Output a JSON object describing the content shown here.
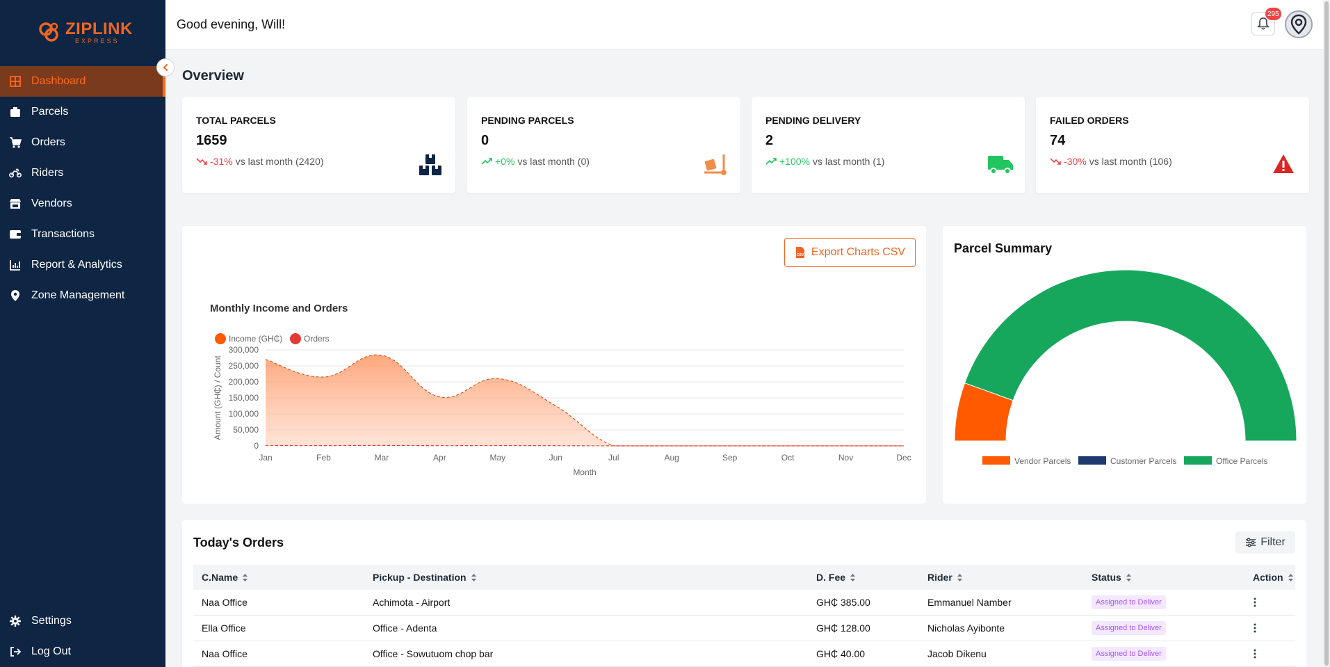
{
  "app": {
    "logo_main": "ZIPLINK",
    "logo_sub": "EXPRESS"
  },
  "sidebar": {
    "items": [
      {
        "label": "Dashboard",
        "icon": "grid-icon",
        "active": true
      },
      {
        "label": "Parcels",
        "icon": "package-icon"
      },
      {
        "label": "Orders",
        "icon": "cart-icon"
      },
      {
        "label": "Riders",
        "icon": "motorbike-icon"
      },
      {
        "label": "Vendors",
        "icon": "store-icon"
      },
      {
        "label": "Transactions",
        "icon": "wallet-icon"
      },
      {
        "label": "Report & Analytics",
        "icon": "chart-icon"
      },
      {
        "label": "Zone Management",
        "icon": "map-pin-icon"
      }
    ],
    "bottom": [
      {
        "label": "Settings",
        "icon": "gear-icon"
      },
      {
        "label": "Log Out",
        "icon": "logout-icon"
      }
    ]
  },
  "header": {
    "greeting": "Good evening, Will!",
    "notification_count": "295"
  },
  "overview": {
    "title": "Overview",
    "cards": [
      {
        "label": "TOTAL PARCELS",
        "value": "1659",
        "change": "-31%",
        "direction": "down",
        "compare": "vs last month (2420)",
        "icon": "boxes-icon",
        "color": "#0e2543"
      },
      {
        "label": "PENDING PARCELS",
        "value": "0",
        "change": "+0%",
        "direction": "up",
        "compare": "vs last month (0)",
        "icon": "dolly-icon",
        "color": "#f28c4a"
      },
      {
        "label": "PENDING DELIVERY",
        "value": "2",
        "change": "+100%",
        "direction": "up",
        "compare": "vs last month (1)",
        "icon": "truck-icon",
        "color": "#22c55e"
      },
      {
        "label": "FAILED ORDERS",
        "value": "74",
        "change": "-30%",
        "direction": "down",
        "compare": "vs last month (106)",
        "icon": "warning-icon",
        "color": "#dc2626"
      }
    ]
  },
  "income_chart": {
    "export_label": "Export Charts CSV",
    "chart_data": {
      "type": "area",
      "title": "Monthly Income and Orders",
      "xlabel": "Month",
      "ylabel": "Amount (GH₵) / Count",
      "categories": [
        "Jan",
        "Feb",
        "Mar",
        "Apr",
        "May",
        "Jun",
        "Jul",
        "Aug",
        "Sep",
        "Oct",
        "Nov",
        "Dec"
      ],
      "ylim": [
        0,
        300000
      ],
      "yticks": [
        "0",
        "50,000",
        "100,000",
        "150,000",
        "200,000",
        "250,000",
        "300,000"
      ],
      "legend_position": "top-left",
      "series": [
        {
          "name": "Income (GH₵)",
          "color": "#ff5a00",
          "values": [
            270000,
            215000,
            283000,
            153000,
            210000,
            125000,
            0,
            0,
            0,
            0,
            0,
            0
          ]
        },
        {
          "name": "Orders",
          "color": "#e53935",
          "values": [
            1200,
            900,
            1300,
            700,
            1000,
            500,
            0,
            0,
            0,
            0,
            0,
            0
          ]
        }
      ]
    }
  },
  "parcel_summary": {
    "title": "Parcel Summary",
    "chart_data": {
      "type": "pie",
      "variant": "half-doughnut",
      "legend_position": "bottom",
      "series": [
        {
          "name": "Vendor Parcels",
          "color": "#ff5a00",
          "value": 11
        },
        {
          "name": "Customer Parcels",
          "color": "#1e3a6e",
          "value": 0
        },
        {
          "name": "Office Parcels",
          "color": "#16a75c",
          "value": 89
        }
      ]
    }
  },
  "orders": {
    "title": "Today's Orders",
    "filter_label": "Filter",
    "columns": [
      "C.Name",
      "Pickup - Destination",
      "D. Fee",
      "Rider",
      "Status",
      "Action"
    ],
    "rows": [
      {
        "name": "Naa Office",
        "route": "Achimota - Airport",
        "fee": "GH₵ 385.00",
        "rider": "Emmanuel Namber",
        "status": "Assigned to Deliver"
      },
      {
        "name": "Ella Office",
        "route": "Office - Adenta",
        "fee": "GH₵ 128.00",
        "rider": "Nicholas Ayibonte",
        "status": "Assigned to Deliver"
      },
      {
        "name": "Naa Office",
        "route": "Office - Sowutuom chop bar",
        "fee": "GH₵ 40.00",
        "rider": "Jacob Dikenu",
        "status": "Assigned to Deliver"
      }
    ]
  }
}
